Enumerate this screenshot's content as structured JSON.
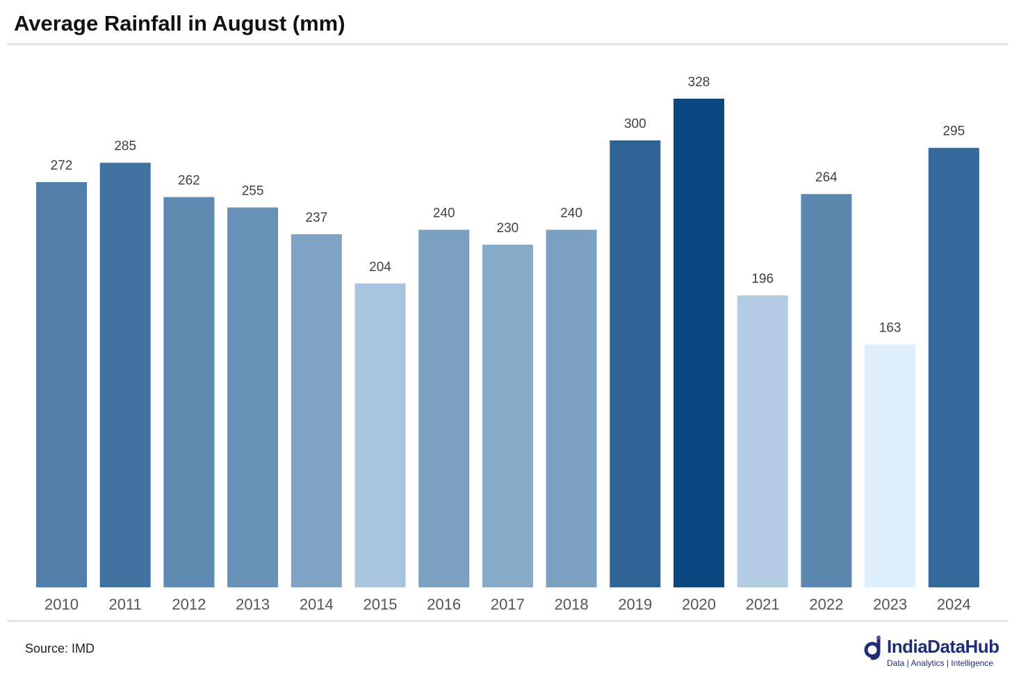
{
  "header": {
    "title": "Average Rainfall in August (mm)"
  },
  "footer": {
    "source": "Source: IMD",
    "logo_name": "IndiaDataHub",
    "logo_tagline": "Data | Analytics | Intelligence"
  },
  "colors": {
    "rule": "#e3e3e3",
    "brand": "#1f2d74",
    "bar_light": "#ddeefc",
    "bar_dark": "#0a467f"
  },
  "chart_data": {
    "type": "bar",
    "title": "Average Rainfall in August (mm)",
    "xlabel": "",
    "ylabel": "",
    "categories": [
      "2010",
      "2011",
      "2012",
      "2013",
      "2014",
      "2015",
      "2016",
      "2017",
      "2018",
      "2019",
      "2020",
      "2021",
      "2022",
      "2023",
      "2024"
    ],
    "values": [
      272,
      285,
      262,
      255,
      237,
      204,
      240,
      230,
      240,
      300,
      328,
      196,
      264,
      163,
      295
    ],
    "ylim": [
      0,
      328
    ],
    "grid": false,
    "legend": "none",
    "color_scale": "value-graded blue (light = low, dark = high)"
  }
}
